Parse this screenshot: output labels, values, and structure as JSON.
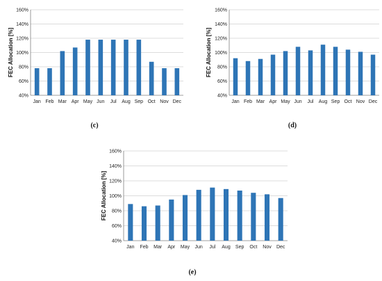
{
  "chart_data": [
    {
      "type": "bar",
      "panel_label": "(c)",
      "ylabel": "FEC Allocation [%]",
      "ylim": [
        40,
        160
      ],
      "yticks": [
        "40%",
        "60%",
        "80%",
        "100%",
        "120%",
        "140%",
        "160%"
      ],
      "categories": [
        "Jan",
        "Feb",
        "Mar",
        "Apr",
        "May",
        "Jun",
        "Jul",
        "Aug",
        "Sep",
        "Oct",
        "Nov",
        "Dec"
      ],
      "values": [
        78,
        78,
        102,
        107,
        118,
        118,
        118,
        118,
        118,
        87,
        78,
        78
      ],
      "grid": true,
      "legend": "none"
    },
    {
      "type": "bar",
      "panel_label": "(d)",
      "ylabel": "FEC Allocation [%]",
      "ylim": [
        40,
        160
      ],
      "yticks": [
        "40%",
        "60%",
        "80%",
        "100%",
        "120%",
        "140%",
        "160%"
      ],
      "categories": [
        "Jan",
        "Feb",
        "Mar",
        "Apr",
        "May",
        "Jun",
        "Jul",
        "Aug",
        "Sep",
        "Oct",
        "Nov",
        "Dec"
      ],
      "values": [
        92,
        88,
        91,
        97,
        102,
        108,
        103,
        111,
        108,
        104,
        101,
        97
      ],
      "grid": true,
      "legend": "none"
    },
    {
      "type": "bar",
      "panel_label": "(e)",
      "ylabel": "FEC Allocation [%]",
      "ylim": [
        40,
        160
      ],
      "yticks": [
        "40%",
        "60%",
        "80%",
        "100%",
        "120%",
        "140%",
        "160%"
      ],
      "categories": [
        "Jan",
        "Feb",
        "Mar",
        "Apr",
        "May",
        "Jun",
        "Jul",
        "Aug",
        "Sep",
        "Oct",
        "Nov",
        "Dec"
      ],
      "values": [
        89,
        86,
        87,
        95,
        101,
        108,
        111,
        109,
        107,
        104,
        102,
        97
      ],
      "grid": true,
      "legend": "none"
    }
  ],
  "colors": {
    "bar": "#2e75b6",
    "grid": "#d0d0d0",
    "axis": "#7f7f7f"
  }
}
